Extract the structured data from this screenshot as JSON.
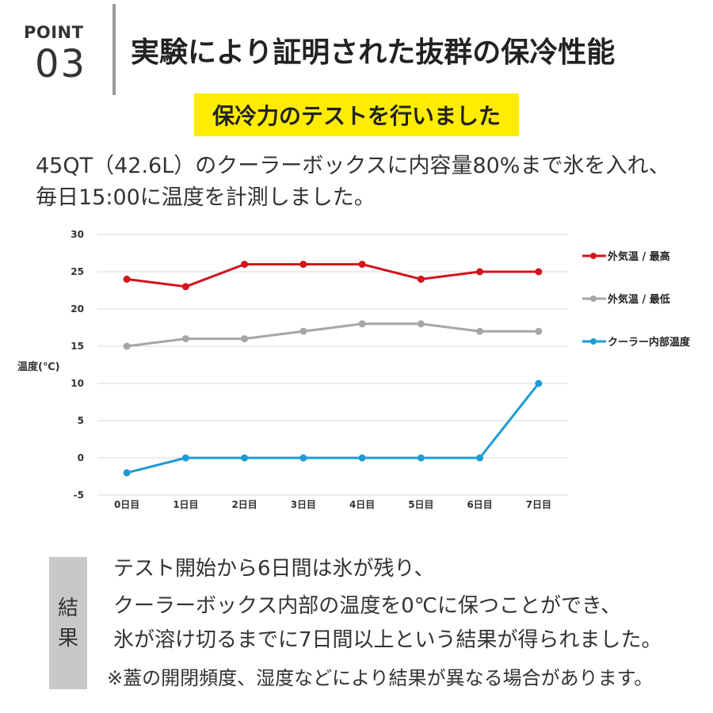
{
  "point": {
    "label": "POINT",
    "number": "03"
  },
  "title": "実験により証明された抜群の保冷性能",
  "badge": "保冷力のテストを行いました",
  "description": [
    "45QT（42.6L）のクーラーボックスに内容量80%まで氷を入れ、",
    "毎日15:00に温度を計測しました。"
  ],
  "chart_data": {
    "type": "line",
    "categories": [
      "0日目",
      "1日目",
      "2日目",
      "3日目",
      "4日目",
      "5日目",
      "6日目",
      "7日目"
    ],
    "series": [
      {
        "name": "外気温 / 最高",
        "color": "#d2141b",
        "values": [
          24,
          23,
          26,
          26,
          26,
          24,
          25,
          25
        ]
      },
      {
        "name": "外気温 / 最低",
        "color": "#a6a6a6",
        "values": [
          15,
          16,
          16,
          17,
          18,
          18,
          17,
          17
        ]
      },
      {
        "name": "クーラー内部温度",
        "color": "#1d9bd5",
        "values": [
          -2,
          0,
          0,
          0,
          0,
          0,
          0,
          10
        ]
      }
    ],
    "ylabel": "温度(℃)",
    "ylim": [
      -5,
      30
    ],
    "yticks": [
      30,
      25,
      20,
      15,
      10,
      5,
      0,
      -5
    ],
    "grid": true,
    "legend": "right"
  },
  "result": {
    "label": [
      "結",
      "果"
    ],
    "lines": [
      "テスト開始から6日間は氷が残り、",
      "クーラーボックス内部の温度を0℃に保つことができ、",
      "氷が溶け切るまでに7日間以上という結果が得られました。"
    ],
    "note": "※蓋の開閉頻度、湿度などにより結果が異なる場合があります。"
  }
}
